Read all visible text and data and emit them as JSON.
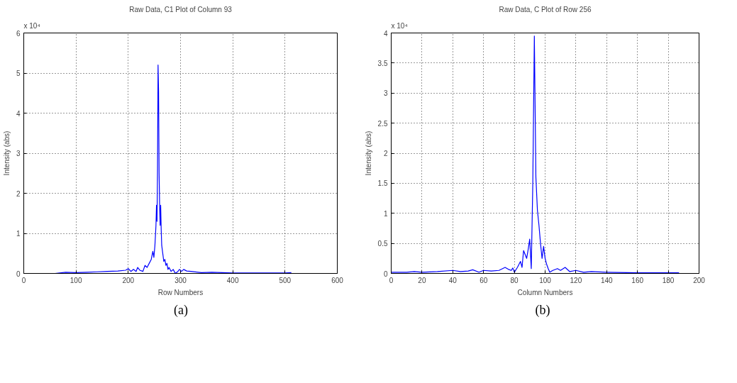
{
  "chart_data": [
    {
      "type": "line",
      "title": "Raw Data, C1 Plot of Column 93",
      "xlabel": "Row Numbers",
      "ylabel": "Intensity (abs)",
      "annotations": [
        "x 10⁴",
        "(a)"
      ],
      "x": [
        0,
        60,
        80,
        100,
        120,
        140,
        160,
        180,
        195,
        200,
        205,
        210,
        215,
        218,
        222,
        228,
        232,
        236,
        240,
        244,
        247,
        249,
        251,
        253,
        254,
        255,
        256,
        257,
        258,
        259,
        260,
        261,
        262,
        263,
        264,
        266,
        268,
        270,
        272,
        274,
        276,
        278,
        282,
        286,
        290,
        295,
        298,
        302,
        306,
        312,
        320,
        340,
        360,
        400,
        450,
        500,
        512
      ],
      "series": [
        {
          "color": "#0000ff",
          "values": [
            0,
            0,
            0.03,
            0.02,
            0.03,
            0.04,
            0.05,
            0.06,
            0.08,
            0.12,
            0.05,
            0.1,
            0.05,
            0.15,
            0.08,
            0.05,
            0.2,
            0.15,
            0.25,
            0.35,
            0.55,
            0.4,
            0.7,
            1.2,
            1.7,
            1.3,
            2.6,
            5.2,
            4.55,
            2.5,
            1.7,
            1.2,
            1.7,
            1.1,
            0.7,
            0.5,
            0.3,
            0.35,
            0.2,
            0.25,
            0.1,
            0.15,
            0.05,
            0.1,
            0,
            0.05,
            0.1,
            0.05,
            0.1,
            0.06,
            0.05,
            0.02,
            0.03,
            0.01,
            0.01,
            0.01,
            0.02
          ]
        }
      ],
      "xlim": [
        0,
        600
      ],
      "ylim": [
        0,
        6
      ],
      "xticks": [
        0,
        100,
        200,
        300,
        400,
        500,
        600
      ],
      "yticks": [
        0,
        1,
        2,
        3,
        4,
        5,
        6
      ],
      "grid": true,
      "line_style": "solid"
    },
    {
      "type": "line",
      "title": "Raw Data, C Plot of Row 256",
      "xlabel": "Column Numbers",
      "ylabel": "Intensity (abs)",
      "annotations": [
        "x 10⁴",
        "(b)"
      ],
      "x": [
        0,
        10,
        15,
        20,
        30,
        40,
        45,
        50,
        53,
        57,
        60,
        65,
        70,
        74,
        76,
        78,
        79,
        80,
        82,
        84,
        85,
        86,
        88,
        89,
        90,
        91,
        92,
        93,
        94,
        95,
        96,
        97,
        98,
        99,
        100,
        101,
        102,
        103,
        105,
        108,
        110,
        113,
        116,
        120,
        125,
        130,
        140,
        160,
        187
      ],
      "series": [
        {
          "color": "#0000ff",
          "values": [
            0.02,
            0.02,
            0.03,
            0.02,
            0.03,
            0.05,
            0.03,
            0.04,
            0.06,
            0.02,
            0.05,
            0.04,
            0.05,
            0.1,
            0.07,
            0.05,
            0.09,
            0.02,
            0.1,
            0.2,
            0.1,
            0.38,
            0.25,
            0.4,
            0.57,
            0.08,
            1.5,
            3.95,
            1.6,
            1.05,
            0.8,
            0.5,
            0.25,
            0.45,
            0.25,
            0.15,
            0.08,
            0.02,
            0.05,
            0.08,
            0.05,
            0.1,
            0.03,
            0.05,
            0.02,
            0.03,
            0.02,
            0.01,
            0.01
          ]
        }
      ],
      "xlim": [
        0,
        200
      ],
      "ylim": [
        0,
        4
      ],
      "xticks": [
        0,
        20,
        40,
        60,
        80,
        100,
        120,
        140,
        160,
        180,
        200
      ],
      "yticks": [
        0,
        0.5,
        1,
        1.5,
        2,
        2.5,
        3,
        3.5,
        4
      ],
      "grid": true,
      "line_style": "solid"
    }
  ]
}
